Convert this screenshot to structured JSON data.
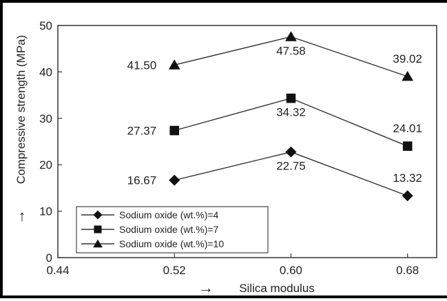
{
  "chart_data": {
    "type": "line",
    "xlabel": "Silica modulus",
    "ylabel": "Compressive strength (MPa)",
    "x": [
      0.52,
      0.6,
      0.68
    ],
    "xlim": [
      0.44,
      0.7
    ],
    "ylim": [
      0,
      50
    ],
    "x_ticks": [
      "0.44",
      "0.52",
      "0.60",
      "0.68"
    ],
    "y_ticks": [
      "0",
      "10",
      "20",
      "30",
      "40",
      "50"
    ],
    "grid": false,
    "legend_position": "bottom-left",
    "series": [
      {
        "name": "Sodium oxide (wt.%)=4",
        "marker": "diamond",
        "values": [
          16.67,
          22.75,
          13.32
        ],
        "labels": [
          "16.67",
          "22.75",
          "13.32"
        ]
      },
      {
        "name": "Sodium oxide (wt.%)=7",
        "marker": "square",
        "values": [
          27.37,
          34.32,
          24.01
        ],
        "labels": [
          "27.37",
          "34.32",
          "24.01"
        ]
      },
      {
        "name": "Sodium oxide (wt.%)=10",
        "marker": "triangle",
        "values": [
          41.5,
          47.58,
          39.02
        ],
        "labels": [
          "41.50",
          "47.58",
          "39.02"
        ]
      }
    ],
    "axis_arrows": {
      "x": "→",
      "y": "↑"
    },
    "line_color": "#333333",
    "marker_color": "#111111"
  }
}
